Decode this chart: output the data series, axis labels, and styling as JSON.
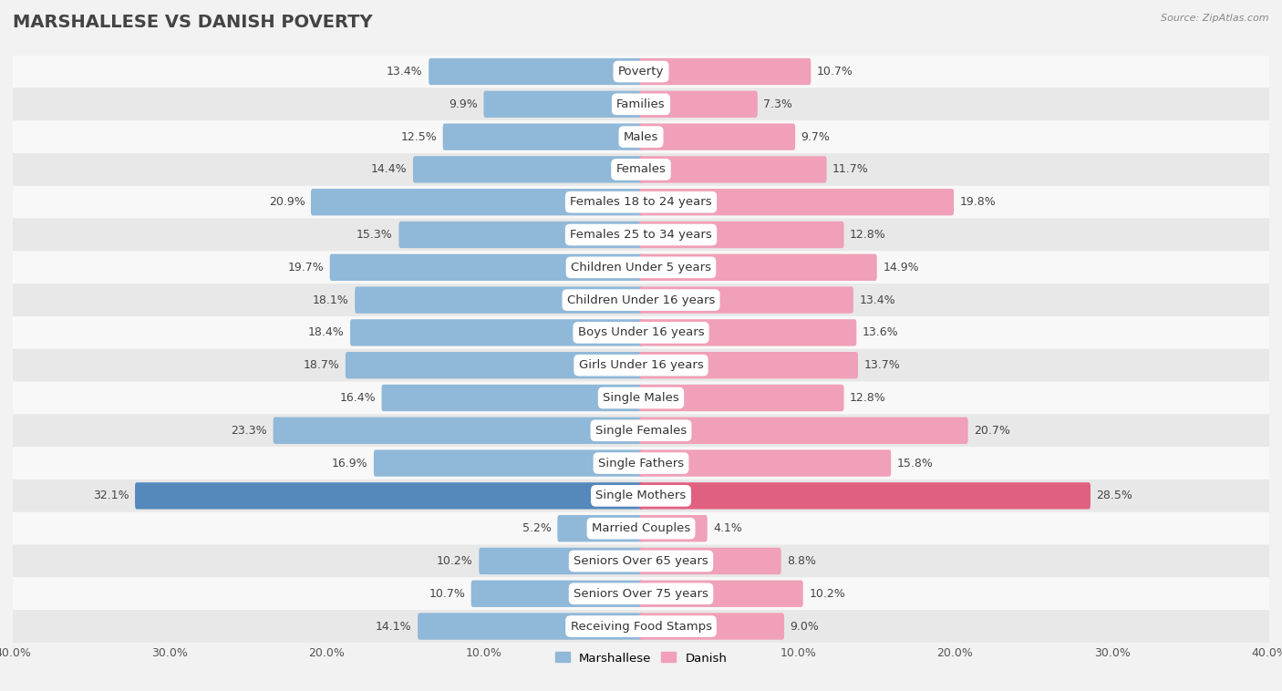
{
  "title": "MARSHALLESE VS DANISH POVERTY",
  "source": "Source: ZipAtlas.com",
  "categories": [
    "Poverty",
    "Families",
    "Males",
    "Females",
    "Females 18 to 24 years",
    "Females 25 to 34 years",
    "Children Under 5 years",
    "Children Under 16 years",
    "Boys Under 16 years",
    "Girls Under 16 years",
    "Single Males",
    "Single Females",
    "Single Fathers",
    "Single Mothers",
    "Married Couples",
    "Seniors Over 65 years",
    "Seniors Over 75 years",
    "Receiving Food Stamps"
  ],
  "marshallese": [
    13.4,
    9.9,
    12.5,
    14.4,
    20.9,
    15.3,
    19.7,
    18.1,
    18.4,
    18.7,
    16.4,
    23.3,
    16.9,
    32.1,
    5.2,
    10.2,
    10.7,
    14.1
  ],
  "danish": [
    10.7,
    7.3,
    9.7,
    11.7,
    19.8,
    12.8,
    14.9,
    13.4,
    13.6,
    13.7,
    12.8,
    20.7,
    15.8,
    28.5,
    4.1,
    8.8,
    10.2,
    9.0
  ],
  "marshallese_color": "#90b8d8",
  "danish_color": "#f0a0b8",
  "single_mothers_marshallese_color": "#5588bb",
  "single_mothers_danish_color": "#e06080",
  "bar_height": 0.58,
  "xlim": 40.0,
  "background_color": "#f2f2f2",
  "row_color_even": "#f8f8f8",
  "row_color_odd": "#e8e8e8",
  "label_fontsize": 9.5,
  "title_fontsize": 14,
  "value_fontsize": 9,
  "source_fontsize": 8
}
